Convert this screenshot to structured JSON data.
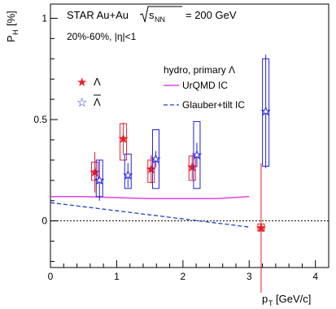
{
  "chart_data": {
    "type": "scatter",
    "title": "STAR Au+Au",
    "energy_sqrt": "s",
    "energy_sub": "NN",
    "energy_value": "= 200 GeV",
    "centrality": "20%-60%, |η|<1",
    "ylabel_main": "P",
    "ylabel_sub": "H",
    "ylabel_unit": "[%]",
    "xlabel_main": "p",
    "xlabel_sub": "T",
    "xlabel_unit": "[GeV/c]",
    "xlim": [
      0,
      4.2
    ],
    "ylim": [
      -0.23,
      1.07
    ],
    "xticks": [
      0,
      1,
      2,
      3,
      4
    ],
    "yticks": [
      0,
      0.5,
      1
    ],
    "ytick_labels": [
      "0",
      "0.5",
      "1"
    ],
    "legend_data": [
      "Λ",
      "Λ"
    ],
    "legend_hydro_title": "hydro, primary Λ",
    "legend_hydro_series": [
      "UrQMD IC",
      "Glauber+tilt IC"
    ],
    "colors": {
      "lambda": "#e8202a",
      "antilambda": "#2020e0",
      "urqmd": "#e040e0",
      "glauber": "#2040c8"
    },
    "series": [
      {
        "name": "Λ",
        "marker": "star-filled",
        "x": [
          0.67,
          1.1,
          1.52,
          2.14,
          3.18
        ],
        "y": [
          0.24,
          0.405,
          0.255,
          0.265,
          -0.035
        ],
        "stat_err": [
          0.1,
          0.08,
          0.07,
          0.06,
          0.32
        ],
        "sys_box": [
          [
            0.2,
            0.29
          ],
          [
            0.3,
            0.48
          ],
          [
            0.19,
            0.3
          ],
          [
            0.2,
            0.32
          ],
          [
            -0.05,
            -0.015
          ]
        ]
      },
      {
        "name": "Λ",
        "marker": "star-open",
        "x": [
          0.74,
          1.17,
          1.59,
          2.21,
          3.25
        ],
        "y": [
          0.2,
          0.225,
          0.305,
          0.325,
          0.54
        ],
        "stat_err": [
          0.1,
          0.06,
          0.04,
          0.06,
          0.28
        ],
        "sys_box": [
          [
            0.12,
            0.3
          ],
          [
            0.16,
            0.33
          ],
          [
            0.16,
            0.45
          ],
          [
            0.16,
            0.49
          ],
          [
            0.27,
            0.8
          ]
        ]
      }
    ],
    "curves": [
      {
        "name": "UrQMD IC",
        "style": "solid",
        "x": [
          0,
          0.5,
          1,
          1.5,
          2,
          2.5,
          3
        ],
        "y": [
          0.12,
          0.12,
          0.115,
          0.11,
          0.11,
          0.11,
          0.12
        ]
      },
      {
        "name": "Glauber+tilt IC",
        "style": "dashed",
        "x": [
          0,
          0.5,
          1,
          1.5,
          2,
          2.5,
          3
        ],
        "y": [
          0.09,
          0.07,
          0.05,
          0.03,
          0.01,
          -0.01,
          -0.03
        ]
      }
    ],
    "reference_line_y": 0
  }
}
